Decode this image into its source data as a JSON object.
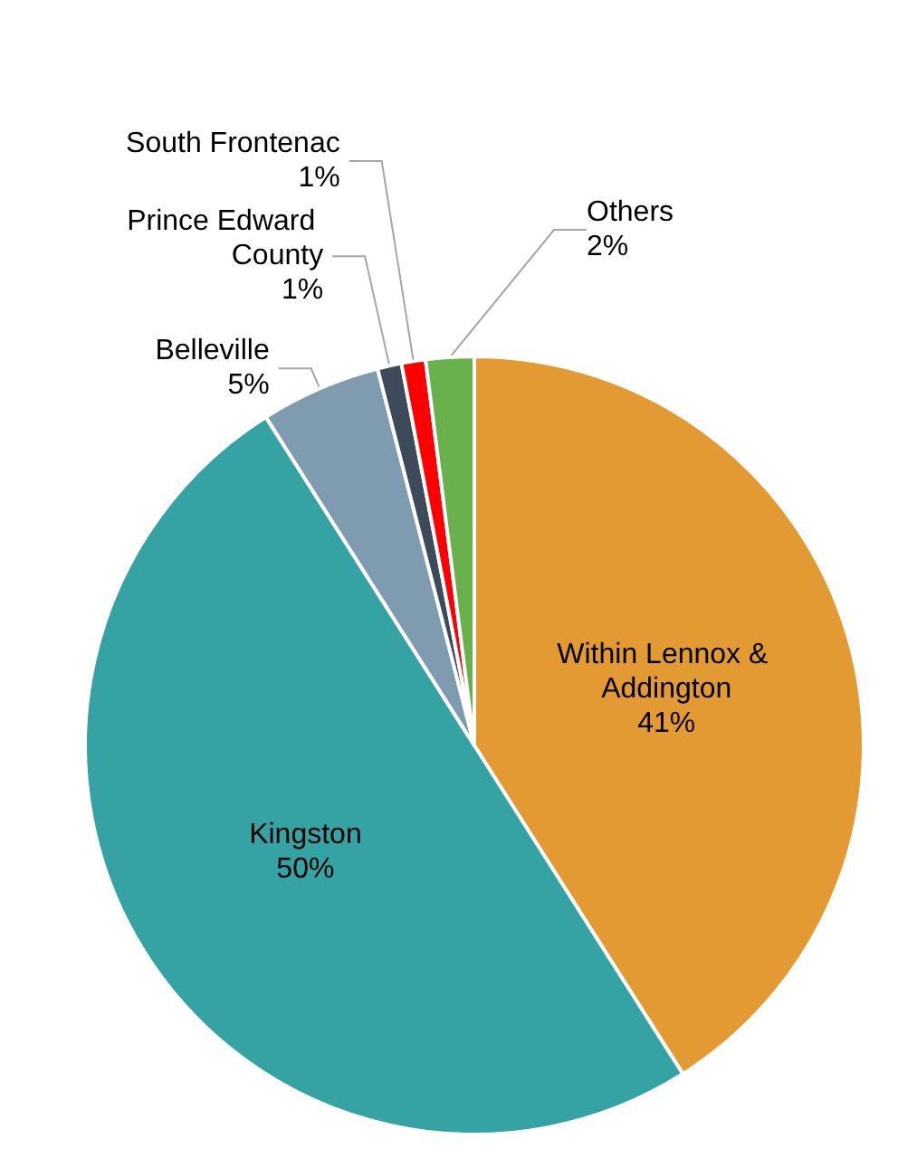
{
  "chart_data": {
    "type": "pie",
    "categories": [
      "Within Lennox & Addington",
      "Kingston",
      "Belleville",
      "Prince Edward County",
      "South Frontenac",
      "Others"
    ],
    "values": [
      41,
      50,
      5,
      1,
      1,
      2
    ],
    "value_labels": [
      "41%",
      "50%",
      "5%",
      "1%",
      "1%",
      "2%"
    ],
    "colors": [
      "#e39a33",
      "#35a3a3",
      "#7f9bb0",
      "#3c4a5a",
      "#ff0000",
      "#6ab04c"
    ],
    "legend": false
  }
}
